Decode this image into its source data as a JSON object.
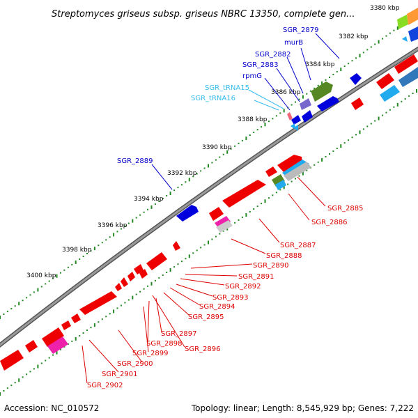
{
  "title": "Streptomyces griseus subsp. griseus NBRC 13350, complete gen...",
  "footer": {
    "accession": "Accession: NC_010572",
    "topology": "Topology: linear; Length: 8,545,929 bp; Genes: 7,222"
  },
  "colors": {
    "backbone": "#7f7f7f",
    "forward_label": "#0000cc",
    "trna_label": "#33bbee",
    "reverse_label": "#dd0000",
    "dot": "#228822"
  },
  "ticks": [
    "3380 kbp",
    "3382 kbp",
    "3384 kbp",
    "3386 kbp",
    "3388 kbp",
    "3390 kbp",
    "3392 kbp",
    "3394 kbp",
    "3396 kbp",
    "3398 kbp",
    "3400 kbp"
  ],
  "forward_labels": [
    "SGR_2879",
    "murB",
    "SGR_2882",
    "SGR_2883",
    "rpmG",
    "SGR_tRNA15",
    "SGR_tRNA16",
    "SGR_2889"
  ],
  "reverse_labels": [
    "SGR_2885",
    "SGR_2886",
    "SGR_2887",
    "SGR_2888",
    "SGR_2890",
    "SGR_2891",
    "SGR_2892",
    "SGR_2893",
    "SGR_2894",
    "SGR_2895",
    "SGR_2897",
    "SGR_2898",
    "SGR_2896",
    "SGR_2899",
    "SGR_2900",
    "SGR_2901",
    "SGR_2902"
  ]
}
